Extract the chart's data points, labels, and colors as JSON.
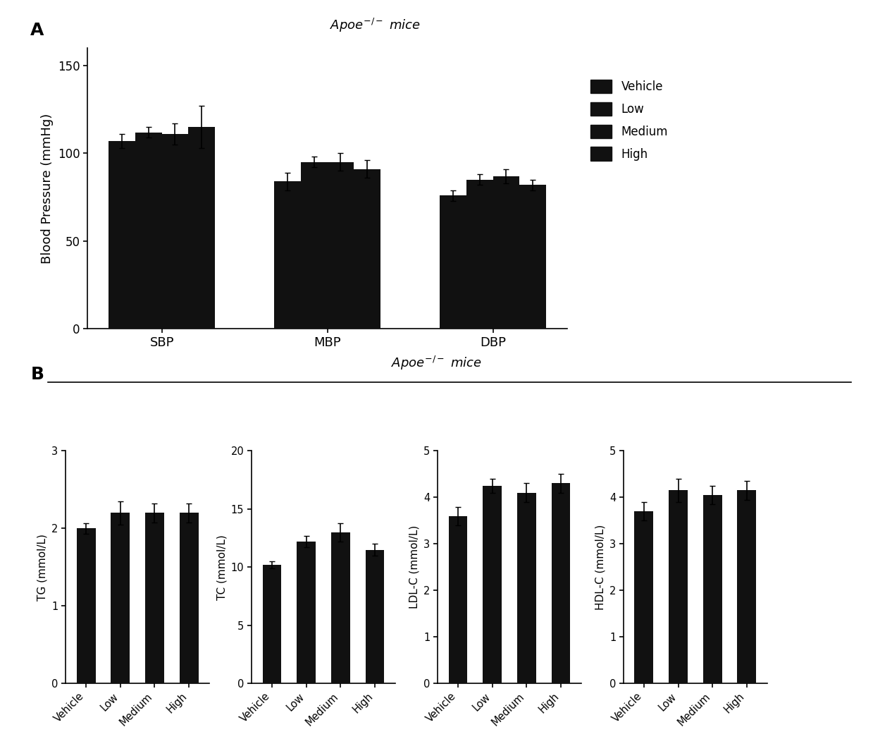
{
  "panel_A": {
    "title": "$Apoe^{-/-}$ mice",
    "ylabel": "Blood Pressure (mmHg)",
    "groups": [
      "SBP",
      "MBP",
      "DBP"
    ],
    "categories": [
      "Vehicle",
      "Low",
      "Medium",
      "High"
    ],
    "values": [
      [
        107,
        112,
        111,
        115
      ],
      [
        84,
        95,
        95,
        91
      ],
      [
        76,
        85,
        87,
        82
      ]
    ],
    "errors": [
      [
        4,
        3,
        6,
        12
      ],
      [
        5,
        3,
        5,
        5
      ],
      [
        3,
        3,
        4,
        3
      ]
    ],
    "ylim": [
      0,
      160
    ],
    "yticks": [
      0,
      50,
      100,
      150
    ],
    "bar_color": "#111111"
  },
  "panel_B": {
    "title": "$Apoe^{-/-}$ mice",
    "subplots": [
      {
        "ylabel": "TG (mmol/L)",
        "values": [
          2.0,
          2.2,
          2.2,
          2.2
        ],
        "errors": [
          0.07,
          0.15,
          0.12,
          0.12
        ],
        "ylim": [
          0,
          3
        ],
        "yticks": [
          0,
          1,
          2,
          3
        ]
      },
      {
        "ylabel": "TC (mmol/L)",
        "values": [
          10.2,
          12.2,
          13.0,
          11.5
        ],
        "errors": [
          0.3,
          0.5,
          0.8,
          0.5
        ],
        "ylim": [
          0,
          20
        ],
        "yticks": [
          0,
          5,
          10,
          15,
          20
        ]
      },
      {
        "ylabel": "LDL-C (mmol/L)",
        "values": [
          3.6,
          4.25,
          4.1,
          4.3
        ],
        "errors": [
          0.2,
          0.15,
          0.2,
          0.2
        ],
        "ylim": [
          0,
          5
        ],
        "yticks": [
          0,
          1,
          2,
          3,
          4,
          5
        ]
      },
      {
        "ylabel": "HDL-C (mmol/L)",
        "values": [
          3.7,
          4.15,
          4.05,
          4.15
        ],
        "errors": [
          0.2,
          0.25,
          0.2,
          0.2
        ],
        "ylim": [
          0,
          5
        ],
        "yticks": [
          0,
          1,
          2,
          3,
          4,
          5
        ]
      }
    ],
    "categories": [
      "Vehicle",
      "Low",
      "Medium",
      "High"
    ],
    "bar_color": "#111111"
  },
  "legend_labels": [
    "Vehicle",
    "Low",
    "Medium",
    "High"
  ],
  "bar_color": "#111111",
  "background_color": "#ffffff",
  "label_A": "A",
  "label_B": "B"
}
